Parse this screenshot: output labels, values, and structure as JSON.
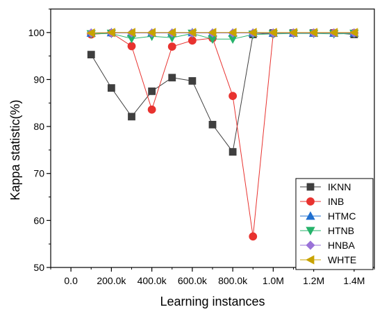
{
  "chart_data": {
    "type": "line",
    "xlabel": "Learning instances",
    "ylabel": "Kappa statistic(%)",
    "x": [
      100000,
      200000,
      300000,
      400000,
      500000,
      600000,
      700000,
      800000,
      900000,
      1000000,
      1100000,
      1200000,
      1300000,
      1400000
    ],
    "xlim": [
      -100000,
      1500000
    ],
    "ylim": [
      50,
      105
    ],
    "xticks": [
      0,
      200000,
      400000,
      600000,
      800000,
      1000000,
      1200000,
      1400000
    ],
    "xtick_labels": [
      "0.0",
      "200.0k",
      "400.0k",
      "600.0k",
      "800.0k",
      "1.0M",
      "1.2M",
      "1.4M"
    ],
    "yticks": [
      50,
      60,
      70,
      80,
      90,
      100
    ],
    "ytick_labels": [
      "50",
      "60",
      "70",
      "80",
      "90",
      "100"
    ],
    "grid": false,
    "legend_position": "bottom-right",
    "series": [
      {
        "name": "IKNN",
        "color": "#3f3f3f",
        "marker": "square",
        "values": [
          95.3,
          88.2,
          82.1,
          87.5,
          90.4,
          89.7,
          80.4,
          74.6,
          99.6,
          99.9,
          99.9,
          99.9,
          99.9,
          99.6
        ]
      },
      {
        "name": "INB",
        "color": "#e8322f",
        "marker": "circle",
        "values": [
          99.6,
          99.9,
          97.1,
          83.6,
          97.0,
          98.3,
          98.8,
          86.5,
          56.6,
          99.8,
          99.9,
          99.9,
          99.9,
          99.9
        ]
      },
      {
        "name": "HTMC",
        "color": "#1f6fd0",
        "marker": "triangle-up",
        "values": [
          99.9,
          100.0,
          99.9,
          99.9,
          99.9,
          100.0,
          99.9,
          99.9,
          99.9,
          99.9,
          99.9,
          99.9,
          99.9,
          99.9
        ]
      },
      {
        "name": "HTNB",
        "color": "#26b36b",
        "marker": "triangle-down",
        "values": [
          99.7,
          99.8,
          98.7,
          99.2,
          98.9,
          99.8,
          98.6,
          98.6,
          99.6,
          99.7,
          99.8,
          99.8,
          99.7,
          99.8
        ]
      },
      {
        "name": "HNBA",
        "color": "#9a72d8",
        "marker": "diamond",
        "values": [
          99.9,
          99.9,
          99.9,
          99.9,
          99.9,
          99.9,
          99.9,
          99.9,
          99.9,
          99.9,
          99.9,
          99.9,
          99.9,
          99.9
        ]
      },
      {
        "name": "WHTE",
        "color": "#c8a300",
        "marker": "triangle-left",
        "values": [
          99.9,
          100.0,
          100.0,
          100.0,
          100.0,
          100.0,
          100.0,
          100.0,
          100.0,
          100.0,
          100.0,
          100.0,
          100.0,
          100.0
        ]
      }
    ]
  }
}
